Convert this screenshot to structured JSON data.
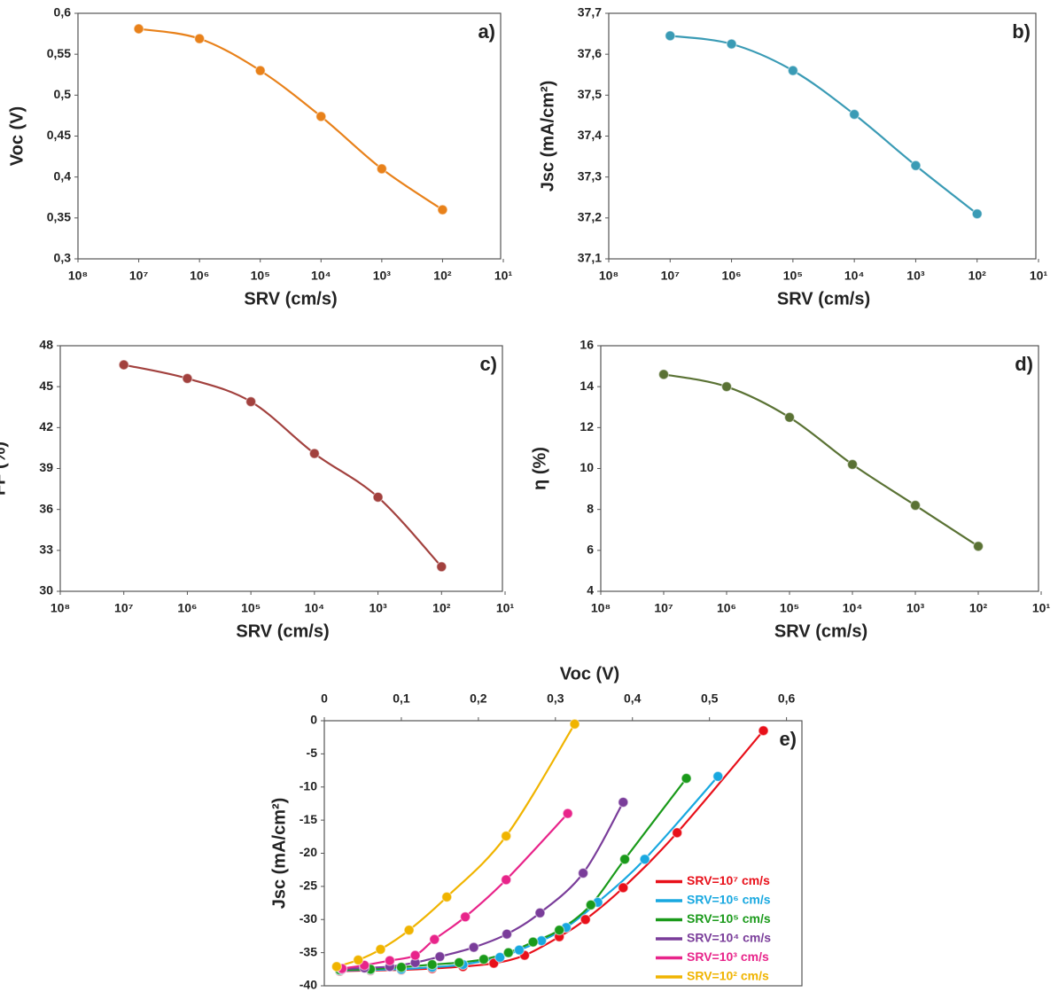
{
  "chart_data": [
    {
      "type": "line",
      "annotation": "a)",
      "xlabel": "SRV (cm/s)",
      "ylabel": "Voc (V)",
      "xscale": "log",
      "color": "#e8811a",
      "x": [
        10000000,
        1000000,
        100000,
        10000,
        1000,
        100
      ],
      "values": [
        0.581,
        0.569,
        0.53,
        0.474,
        0.41,
        0.36
      ],
      "xlim": [
        100000000,
        10
      ],
      "xticks": [
        {
          "value": 100000000,
          "label": "10⁸"
        },
        {
          "value": 10000000,
          "label": "10⁷"
        },
        {
          "value": 1000000,
          "label": "10⁶"
        },
        {
          "value": 100000,
          "label": "10⁵"
        },
        {
          "value": 10000,
          "label": "10⁴"
        },
        {
          "value": 1000,
          "label": "10³"
        },
        {
          "value": 100,
          "label": "10²"
        },
        {
          "value": 10,
          "label": "10¹"
        }
      ],
      "ylim": [
        0.3,
        0.6
      ],
      "yticks": [
        {
          "value": 0.3,
          "label": "0,3"
        },
        {
          "value": 0.35,
          "label": "0,35"
        },
        {
          "value": 0.4,
          "label": "0,4"
        },
        {
          "value": 0.45,
          "label": "0,45"
        },
        {
          "value": 0.5,
          "label": "0,5"
        },
        {
          "value": 0.55,
          "label": "0,55"
        },
        {
          "value": 0.6,
          "label": "0,6"
        }
      ]
    },
    {
      "type": "line",
      "annotation": "b)",
      "xlabel": "SRV (cm/s)",
      "ylabel": "Jsc (mA/cm²)",
      "xscale": "log",
      "color": "#3a9bb5",
      "x": [
        10000000,
        1000000,
        100000,
        10000,
        1000,
        100
      ],
      "values": [
        37.645,
        37.625,
        37.56,
        37.453,
        37.328,
        37.21
      ],
      "xlim": [
        100000000,
        10
      ],
      "xticks": [
        {
          "value": 100000000,
          "label": "10⁸"
        },
        {
          "value": 10000000,
          "label": "10⁷"
        },
        {
          "value": 1000000,
          "label": "10⁶"
        },
        {
          "value": 100000,
          "label": "10⁵"
        },
        {
          "value": 10000,
          "label": "10⁴"
        },
        {
          "value": 1000,
          "label": "10³"
        },
        {
          "value": 100,
          "label": "10²"
        },
        {
          "value": 10,
          "label": "10¹"
        }
      ],
      "ylim": [
        37.1,
        37.7
      ],
      "yticks": [
        {
          "value": 37.1,
          "label": "37,1"
        },
        {
          "value": 37.2,
          "label": "37,2"
        },
        {
          "value": 37.3,
          "label": "37,3"
        },
        {
          "value": 37.4,
          "label": "37,4"
        },
        {
          "value": 37.5,
          "label": "37,5"
        },
        {
          "value": 37.6,
          "label": "37,6"
        },
        {
          "value": 37.7,
          "label": "37,7"
        }
      ]
    },
    {
      "type": "line",
      "annotation": "c)",
      "xlabel": "SRV (cm/s)",
      "ylabel": "FF (%)",
      "xscale": "log",
      "color": "#a2413e",
      "x": [
        10000000,
        1000000,
        100000,
        10000,
        1000,
        100
      ],
      "values": [
        46.6,
        45.6,
        43.9,
        40.1,
        36.9,
        31.8
      ],
      "xlim": [
        100000000,
        10
      ],
      "xticks": [
        {
          "value": 100000000,
          "label": "10⁸"
        },
        {
          "value": 10000000,
          "label": "10⁷"
        },
        {
          "value": 1000000,
          "label": "10⁶"
        },
        {
          "value": 100000,
          "label": "10⁵"
        },
        {
          "value": 10000,
          "label": "10⁴"
        },
        {
          "value": 1000,
          "label": "10³"
        },
        {
          "value": 100,
          "label": "10²"
        },
        {
          "value": 10,
          "label": "10¹"
        }
      ],
      "ylim": [
        30,
        48
      ],
      "yticks": [
        30,
        33,
        36,
        39,
        42,
        45,
        48
      ]
    },
    {
      "type": "line",
      "annotation": "d)",
      "xlabel": "SRV (cm/s)",
      "ylabel": "η (%)",
      "xscale": "log",
      "color": "#5a7234",
      "x": [
        10000000,
        1000000,
        100000,
        10000,
        1000,
        100
      ],
      "values": [
        14.6,
        14.0,
        12.5,
        10.2,
        8.2,
        6.2
      ],
      "xlim": [
        100000000,
        10
      ],
      "xticks": [
        {
          "value": 100000000,
          "label": "10⁸"
        },
        {
          "value": 10000000,
          "label": "10⁷"
        },
        {
          "value": 1000000,
          "label": "10⁶"
        },
        {
          "value": 100000,
          "label": "10⁵"
        },
        {
          "value": 10000,
          "label": "10⁴"
        },
        {
          "value": 1000,
          "label": "10³"
        },
        {
          "value": 100,
          "label": "10²"
        },
        {
          "value": 10,
          "label": "10¹"
        }
      ],
      "ylim": [
        4,
        16
      ],
      "yticks": [
        4,
        6,
        8,
        10,
        12,
        14,
        16
      ]
    },
    {
      "type": "line",
      "annotation": "e)",
      "xlabel": "Voc (V)",
      "ylabel": "Jsc (mA/cm²)",
      "x_axis_position": "top",
      "legend": "bottom-right",
      "xlim": [
        0,
        0.62
      ],
      "xticks": [
        0,
        {
          "value": 0.1,
          "label": "0,1"
        },
        {
          "value": 0.2,
          "label": "0,2"
        },
        {
          "value": 0.3,
          "label": "0,3"
        },
        {
          "value": 0.4,
          "label": "0,4"
        },
        {
          "value": 0.5,
          "label": "0,5"
        },
        {
          "value": 0.6,
          "label": "0,6"
        }
      ],
      "ylim": [
        -40,
        0
      ],
      "yticks": [
        0,
        -5,
        -10,
        -15,
        -20,
        -25,
        -30,
        -35,
        -40
      ],
      "series": [
        {
          "name": "SRV=10⁷ cm/s",
          "color": "#e8101a",
          "x": [
            0.02,
            0.06,
            0.1,
            0.14,
            0.18,
            0.22,
            0.26,
            0.305,
            0.339,
            0.388,
            0.458,
            0.57
          ],
          "values": [
            -37.8,
            -37.7,
            -37.6,
            -37.4,
            -37.1,
            -36.6,
            -35.4,
            -32.6,
            -30.0,
            -25.2,
            -16.9,
            -1.5
          ]
        },
        {
          "name": "SRV=10⁶ cm/s",
          "color": "#18a8e0",
          "x": [
            0.02,
            0.06,
            0.1,
            0.14,
            0.18,
            0.228,
            0.253,
            0.282,
            0.314,
            0.355,
            0.416,
            0.511
          ],
          "values": [
            -37.7,
            -37.6,
            -37.5,
            -37.2,
            -36.8,
            -35.7,
            -34.6,
            -33.2,
            -31.2,
            -27.4,
            -20.9,
            -8.4
          ]
        },
        {
          "name": "SRV=10⁵ cm/s",
          "color": "#1a9a1a",
          "x": [
            0.02,
            0.06,
            0.1,
            0.14,
            0.175,
            0.207,
            0.239,
            0.271,
            0.305,
            0.346,
            0.39,
            0.47
          ],
          "values": [
            -37.6,
            -37.5,
            -37.2,
            -36.8,
            -36.5,
            -36.0,
            -35.0,
            -33.4,
            -31.6,
            -27.8,
            -20.9,
            -8.7
          ]
        },
        {
          "name": "SRV=10⁴ cm/s",
          "color": "#7a3d9a",
          "x": [
            0.023,
            0.052,
            0.085,
            0.118,
            0.15,
            0.194,
            0.237,
            0.28,
            0.336,
            0.388
          ],
          "values": [
            -37.5,
            -37.3,
            -37.1,
            -36.5,
            -35.6,
            -34.2,
            -32.2,
            -29.0,
            -23.0,
            -12.3
          ]
        },
        {
          "name": "SRV=10³ cm/s",
          "color": "#e8248a",
          "x": [
            0.023,
            0.052,
            0.085,
            0.118,
            0.143,
            0.183,
            0.236,
            0.316
          ],
          "values": [
            -37.4,
            -36.9,
            -36.2,
            -35.4,
            -33.0,
            -29.6,
            -24.0,
            -14.0
          ]
        },
        {
          "name": "SRV=10² cm/s",
          "color": "#f0b400",
          "x": [
            0.016,
            0.044,
            0.073,
            0.11,
            0.159,
            0.236,
            0.325
          ],
          "values": [
            -37.1,
            -36.1,
            -34.5,
            -31.6,
            -26.6,
            -17.4,
            -0.5
          ]
        }
      ]
    }
  ]
}
